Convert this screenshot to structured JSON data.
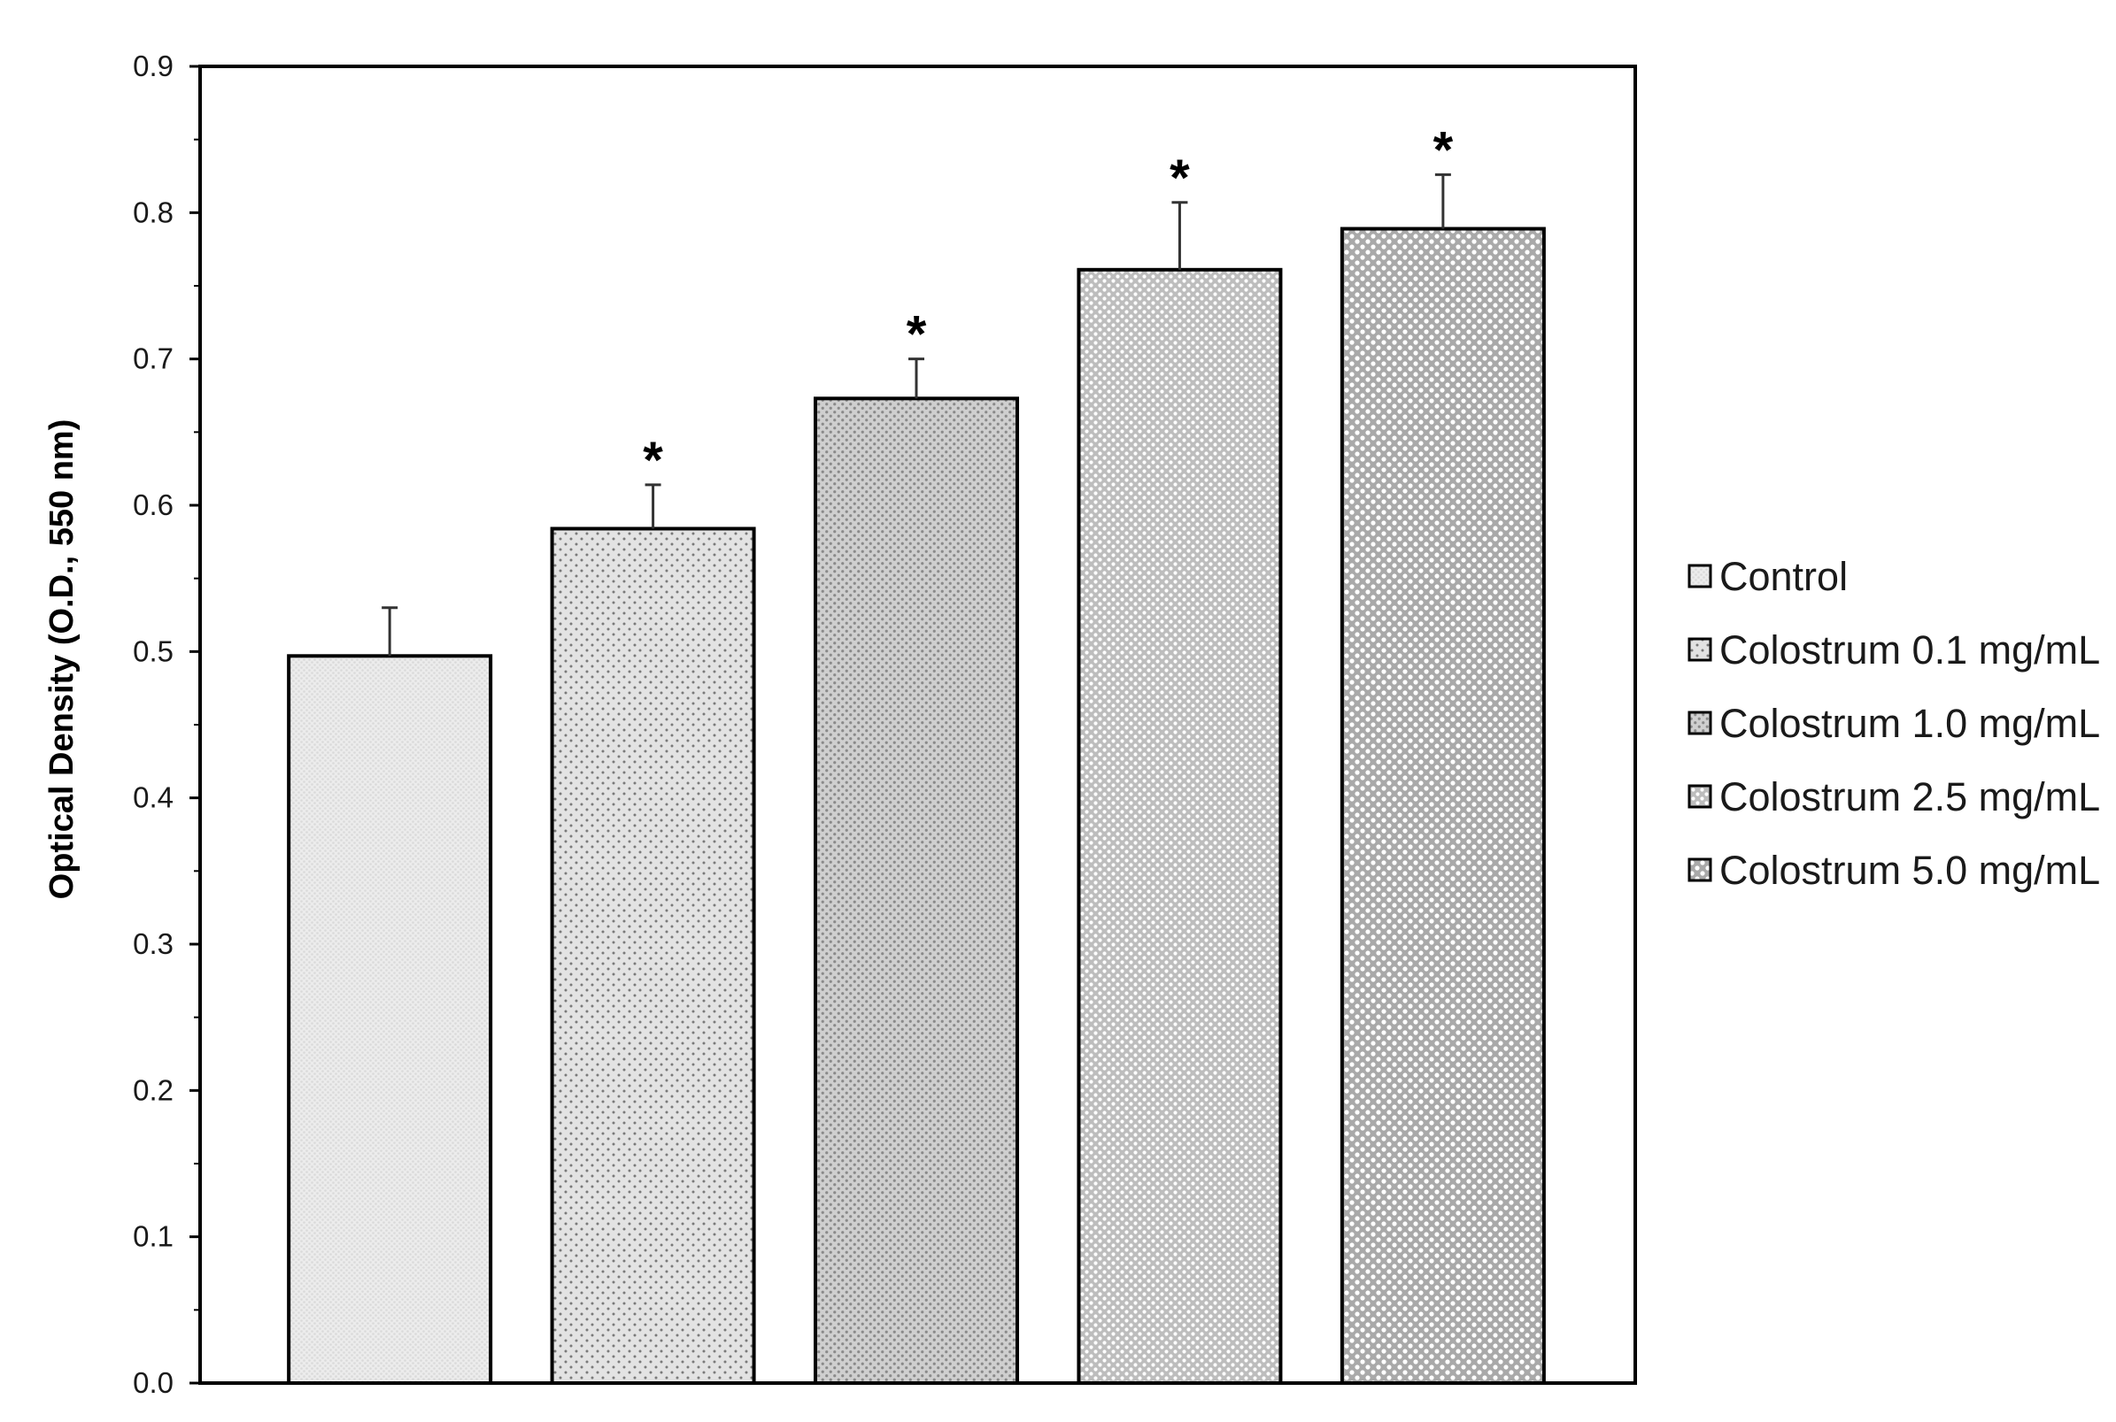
{
  "chart_data": {
    "type": "bar",
    "title": "",
    "xlabel": "",
    "ylabel": "Optical Density (O.D., 550 nm)",
    "ylim": [
      0,
      0.9
    ],
    "yticks": [
      "0.0",
      "0.1",
      "0.2",
      "0.3",
      "0.4",
      "0.5",
      "0.6",
      "0.7",
      "0.8",
      "0.9"
    ],
    "grid": false,
    "legend_position": "right",
    "categories": [
      "Control",
      "Colostrum 0.1 mg/mL",
      "Colostrum 1.0 mg/mL",
      "Colostrum 2.5 mg/mL",
      "Colostrum 5.0 mg/mL"
    ],
    "values": [
      0.497,
      0.584,
      0.673,
      0.761,
      0.789
    ],
    "error": [
      0.033,
      0.03,
      0.027,
      0.046,
      0.037
    ],
    "significance": [
      "",
      "*",
      "*",
      "*",
      "*"
    ],
    "fills": [
      "#ececec",
      "#e3e3e3",
      "#cfcfcf",
      "#bdbdbd",
      "#a9a9a9"
    ],
    "dot_colors": [
      "#dadada",
      "#7a7a7a",
      "#8a8a8a",
      "#ffffff",
      "#ffffff"
    ]
  }
}
